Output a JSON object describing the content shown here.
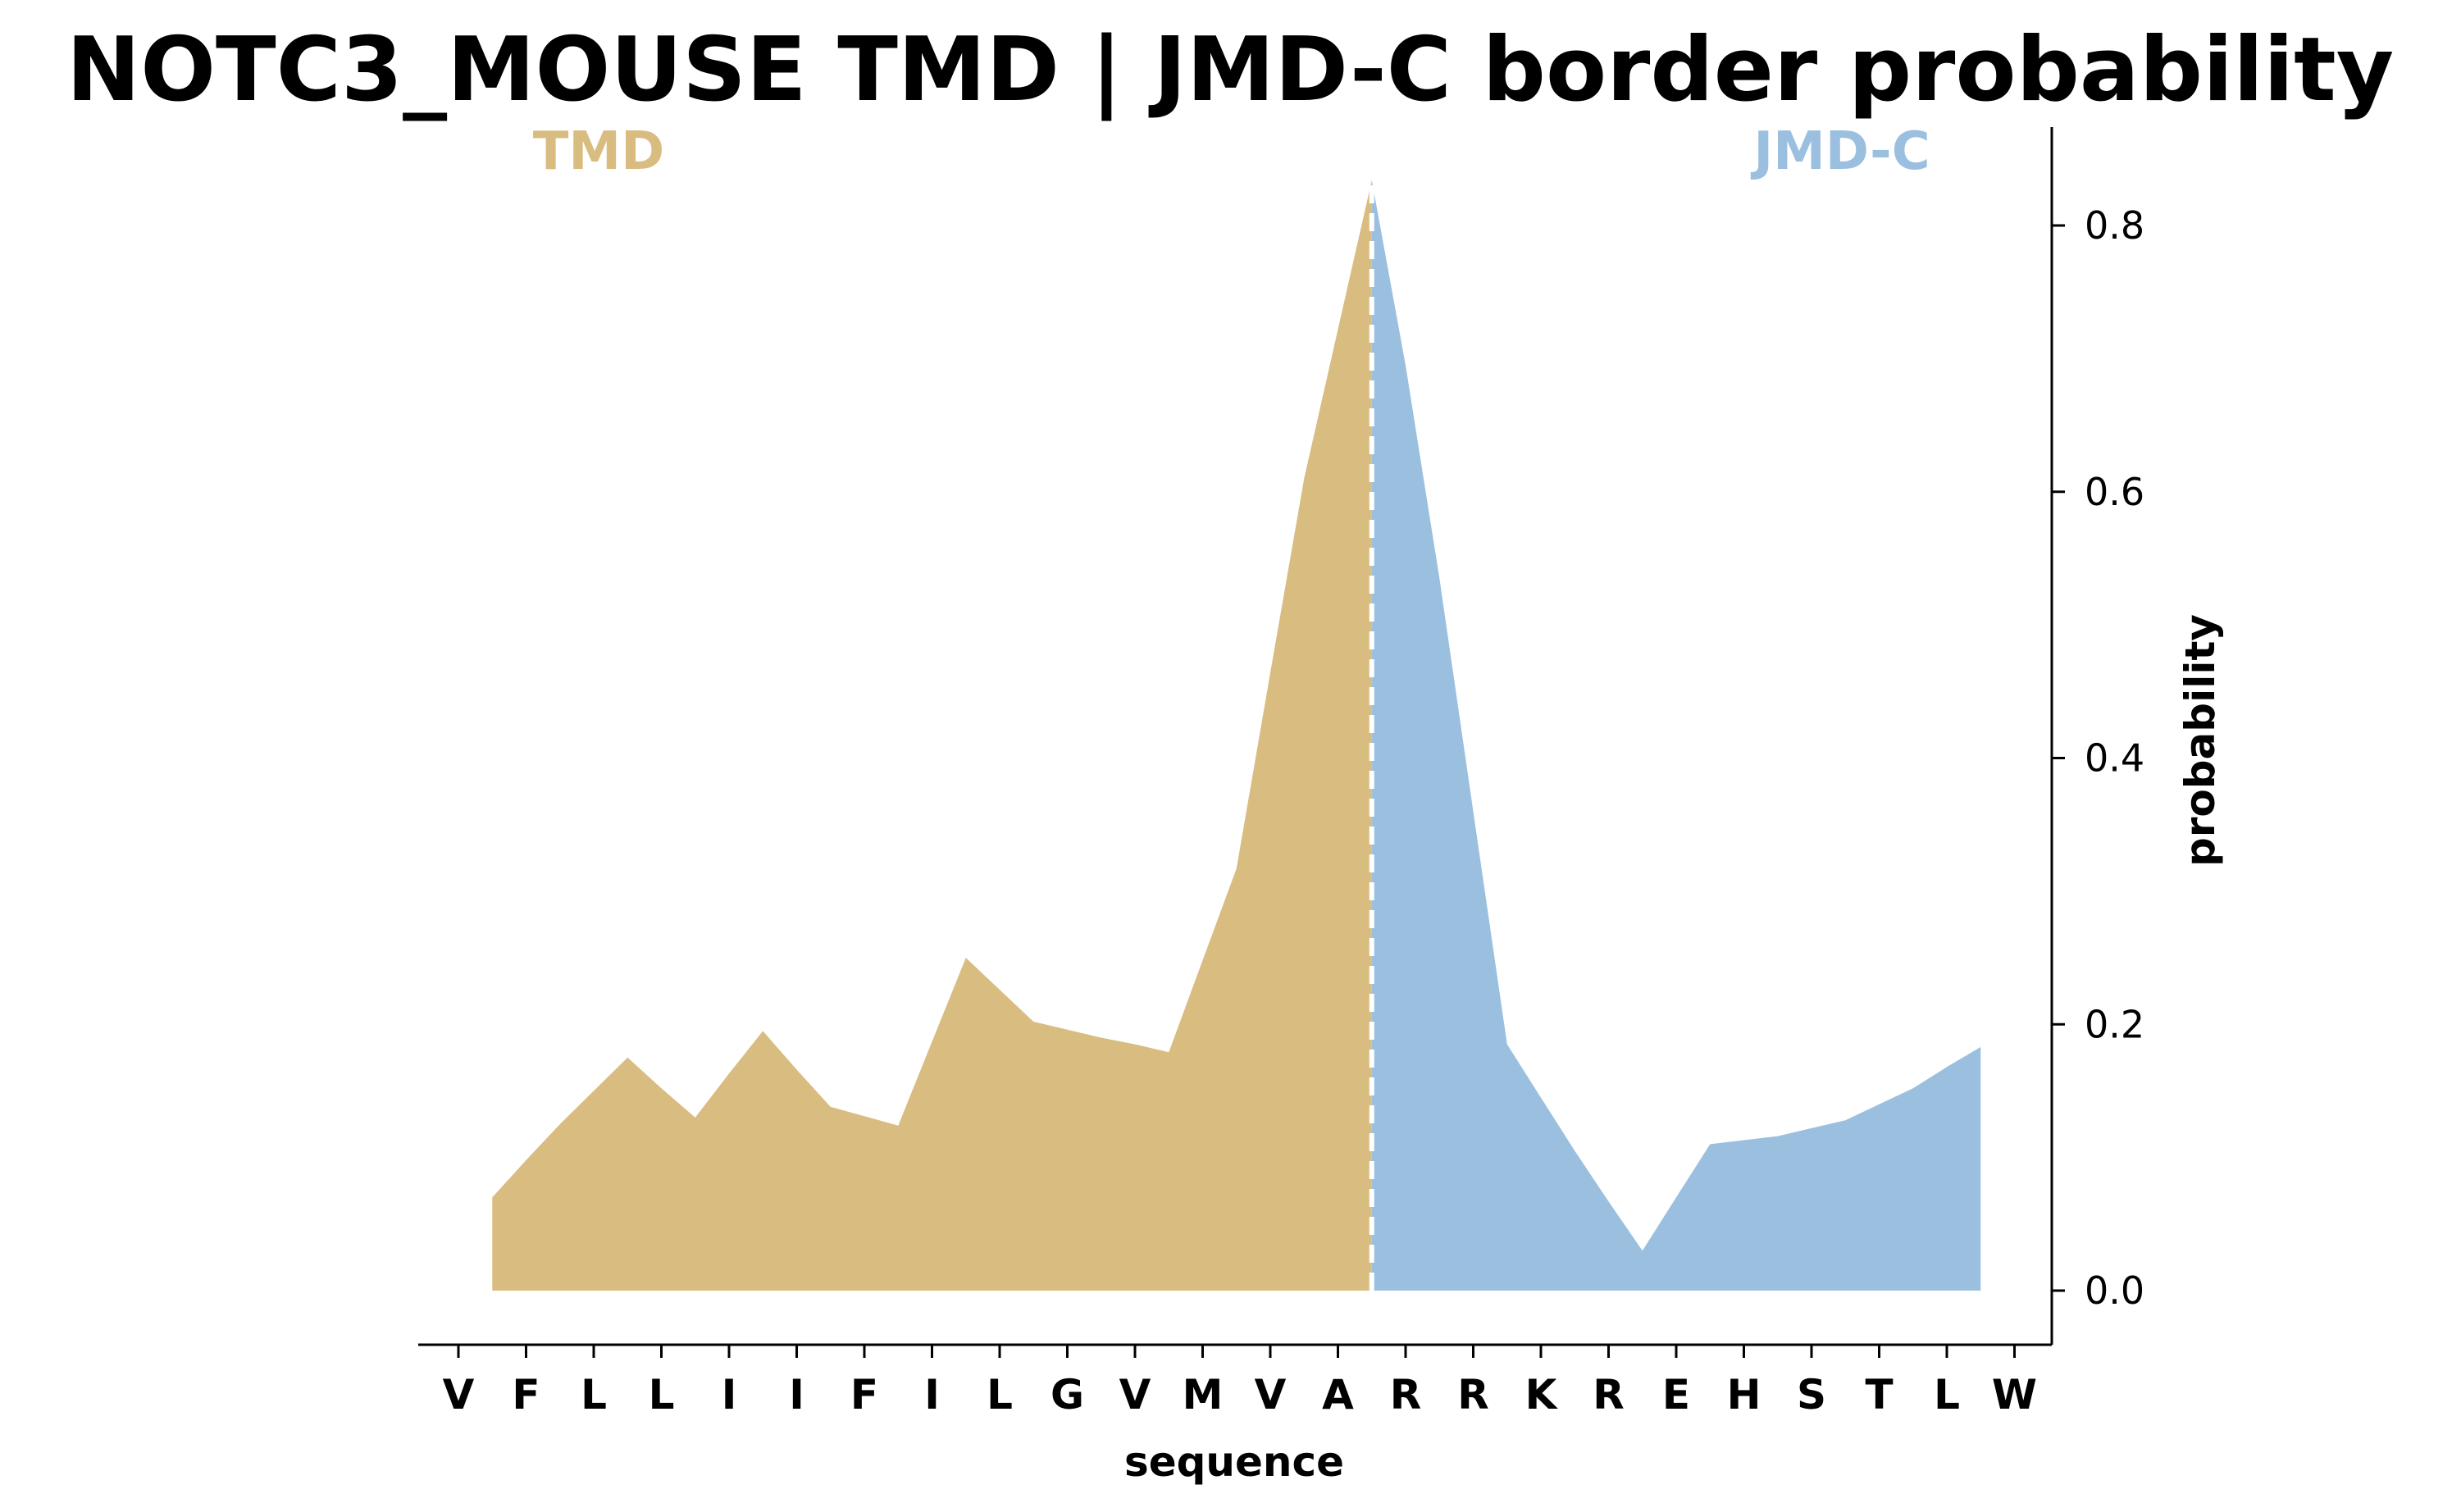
{
  "chart_data": {
    "type": "area",
    "title": "NOTC3_MOUSE TMD | JMD-C border probability",
    "xlabel": "sequence",
    "ylabel": "probability",
    "categories": [
      "V",
      "F",
      "L",
      "L",
      "I",
      "I",
      "F",
      "I",
      "L",
      "G",
      "V",
      "M",
      "V",
      "A",
      "R",
      "R",
      "K",
      "R",
      "E",
      "H",
      "S",
      "T",
      "L",
      "W"
    ],
    "region_labels": [
      {
        "text": "TMD",
        "color": "#d9bc80"
      },
      {
        "text": "JMD-C",
        "color": "#9bc0df"
      }
    ],
    "border_after_index": 13,
    "yticks": [
      0.0,
      0.2,
      0.4,
      0.6,
      0.8
    ],
    "ytick_labels": [
      "0.0",
      "0.2",
      "0.4",
      "0.6",
      "0.8"
    ],
    "ylim": [
      -0.04,
      0.87
    ],
    "y_axis_side": "right",
    "grid": false,
    "series": [
      {
        "x": [
          0.5,
          1.0,
          1.5,
          2.0,
          2.5,
          3.0,
          3.5,
          4.0,
          4.5,
          5.0,
          5.5,
          6.0,
          6.5,
          7.0,
          7.5,
          8.0,
          8.5,
          9.0,
          9.5,
          10.0,
          10.5,
          11.0,
          11.5,
          12.0,
          12.5,
          13.0,
          13.5
        ],
        "values": [
          0.07,
          0.098,
          0.125,
          0.15,
          0.175,
          0.152,
          0.13,
          0.163,
          0.195,
          0.166,
          0.138,
          0.131,
          0.124,
          0.187,
          0.25,
          0.226,
          0.202,
          0.196,
          0.19,
          0.185,
          0.179,
          0.248,
          0.317,
          0.464,
          0.61,
          0.722,
          0.834
        ],
        "color": "#d9bc80"
      },
      {
        "x": [
          13.5,
          14.0,
          14.5,
          15.0,
          15.5,
          16.0,
          16.5,
          17.0,
          17.5,
          18.0,
          18.5,
          19.0,
          19.5,
          20.0,
          20.5,
          21.0,
          21.5,
          22.0,
          22.5
        ],
        "values": [
          0.834,
          0.695,
          0.535,
          0.36,
          0.185,
          0.145,
          0.105,
          0.067,
          0.03,
          0.07,
          0.11,
          0.113,
          0.116,
          0.122,
          0.128,
          0.14,
          0.152,
          0.168,
          0.183
        ],
        "color": "#9bc0df"
      }
    ]
  }
}
